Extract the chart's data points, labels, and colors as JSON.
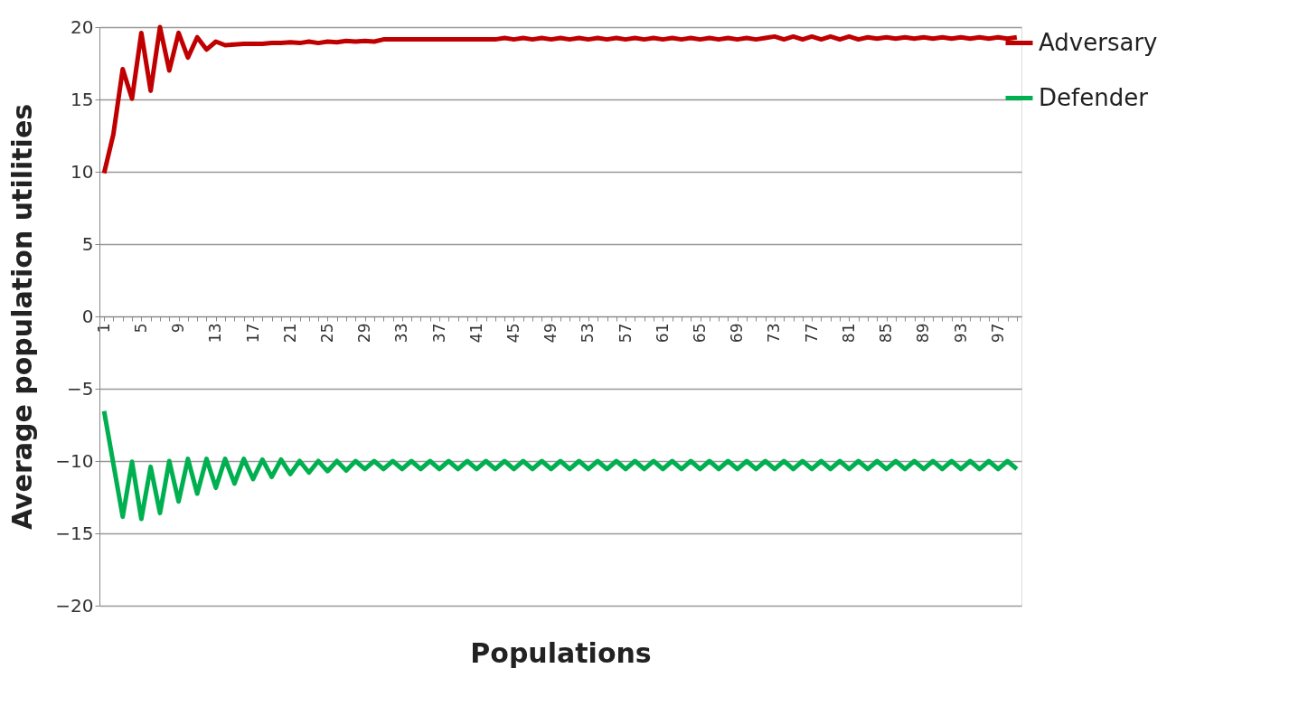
{
  "chart_data": {
    "type": "line",
    "xlabel": "Populations",
    "ylabel": "Average population utilities",
    "categories": [
      "1",
      null,
      null,
      null,
      "5",
      null,
      null,
      null,
      "9",
      null,
      null,
      null,
      "13",
      null,
      null,
      null,
      "17",
      null,
      null,
      null,
      "21",
      null,
      null,
      null,
      "25",
      null,
      null,
      null,
      "29",
      null,
      null,
      null,
      "33",
      null,
      null,
      null,
      "37",
      null,
      null,
      null,
      "41",
      null,
      null,
      null,
      "45",
      null,
      null,
      null,
      "49",
      null,
      null,
      null,
      "53",
      null,
      null,
      null,
      "57",
      null,
      null,
      null,
      "61",
      null,
      null,
      null,
      "65",
      null,
      null,
      null,
      "69",
      null,
      null,
      null,
      "73",
      null,
      null,
      null,
      "77",
      null,
      null,
      null,
      "81",
      null,
      null,
      null,
      "85",
      null,
      null,
      null,
      "89",
      null,
      null,
      null,
      "93",
      null,
      null,
      null,
      "97",
      null,
      null
    ],
    "ylim": [
      -20,
      20
    ],
    "yticks": [
      -20,
      -15,
      -10,
      -5,
      0,
      5,
      10,
      15,
      20
    ],
    "grid": "y",
    "legend": "right",
    "line_style": "solid",
    "series": [
      {
        "name": "Adversary",
        "color": "#c00000",
        "values": [
          9.9,
          12.6,
          17.1,
          15.05,
          19.6,
          15.6,
          20.0,
          17.0,
          19.6,
          17.9,
          19.3,
          18.45,
          19.0,
          18.75,
          18.8,
          18.85,
          18.85,
          18.85,
          18.9,
          18.9,
          18.95,
          18.9,
          19.0,
          18.9,
          19.0,
          18.95,
          19.05,
          19.0,
          19.05,
          19.0,
          19.15,
          19.15,
          19.15,
          19.15,
          19.15,
          19.15,
          19.15,
          19.15,
          19.15,
          19.15,
          19.15,
          19.15,
          19.15,
          19.25,
          19.15,
          19.25,
          19.15,
          19.25,
          19.15,
          19.25,
          19.15,
          19.25,
          19.15,
          19.25,
          19.15,
          19.25,
          19.15,
          19.25,
          19.15,
          19.25,
          19.15,
          19.25,
          19.15,
          19.25,
          19.15,
          19.25,
          19.15,
          19.25,
          19.15,
          19.25,
          19.15,
          19.25,
          19.35,
          19.15,
          19.35,
          19.15,
          19.35,
          19.15,
          19.35,
          19.15,
          19.35,
          19.15,
          19.3,
          19.2,
          19.3,
          19.2,
          19.3,
          19.2,
          19.3,
          19.2,
          19.3,
          19.2,
          19.3,
          19.2,
          19.3,
          19.2,
          19.3,
          19.2,
          19.3
        ]
      },
      {
        "name": "Defender",
        "color": "#00b050",
        "values": [
          -6.55,
          -10.2,
          -13.85,
          -10.05,
          -14.0,
          -10.4,
          -13.6,
          -10.0,
          -12.8,
          -9.85,
          -12.25,
          -9.85,
          -11.85,
          -9.85,
          -11.55,
          -9.85,
          -11.25,
          -9.9,
          -11.1,
          -9.9,
          -10.9,
          -10.0,
          -10.8,
          -10.0,
          -10.7,
          -10.0,
          -10.65,
          -10.0,
          -10.55,
          -10.0,
          -10.55,
          -10.0,
          -10.55,
          -10.0,
          -10.55,
          -10.0,
          -10.55,
          -10.0,
          -10.55,
          -10.0,
          -10.55,
          -10.0,
          -10.55,
          -10.0,
          -10.55,
          -10.0,
          -10.55,
          -10.0,
          -10.55,
          -10.0,
          -10.55,
          -10.0,
          -10.55,
          -10.0,
          -10.55,
          -10.0,
          -10.55,
          -10.0,
          -10.55,
          -10.0,
          -10.55,
          -10.0,
          -10.55,
          -10.0,
          -10.55,
          -10.0,
          -10.55,
          -10.0,
          -10.55,
          -10.0,
          -10.55,
          -10.0,
          -10.55,
          -10.0,
          -10.55,
          -10.0,
          -10.55,
          -10.0,
          -10.55,
          -10.0,
          -10.55,
          -10.0,
          -10.55,
          -10.0,
          -10.55,
          -10.0,
          -10.55,
          -10.0,
          -10.55,
          -10.0,
          -10.55,
          -10.0,
          -10.55,
          -10.0,
          -10.55,
          -10.0,
          -10.55,
          -10.0,
          -10.55
        ]
      }
    ]
  }
}
